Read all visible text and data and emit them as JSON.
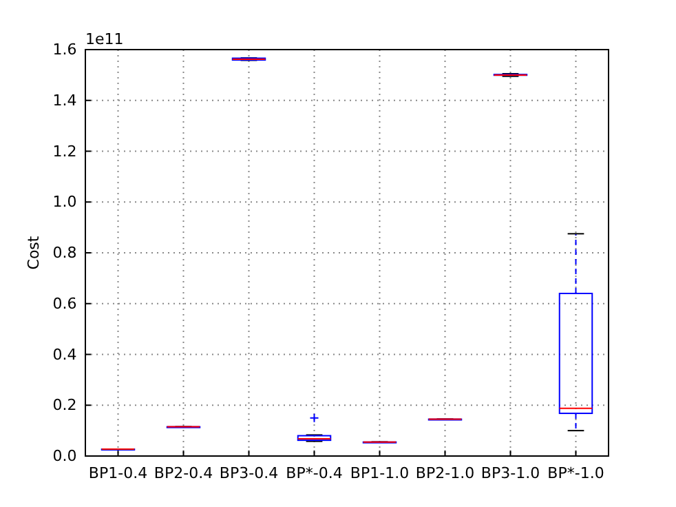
{
  "chart_data": {
    "type": "box",
    "ylabel": "Cost",
    "annotations": [
      "1e11"
    ],
    "categories": [
      "BP1-0.4",
      "BP2-0.4",
      "BP3-0.4",
      "BP*-0.4",
      "BP1-1.0",
      "BP2-1.0",
      "BP3-1.0",
      "BP*-1.0"
    ],
    "boxes": [
      {
        "low": 0.027,
        "q1": 0.027,
        "median": 0.027,
        "q3": 0.027,
        "high": 0.027
      },
      {
        "low": 0.115,
        "q1": 0.115,
        "median": 0.115,
        "q3": 0.115,
        "high": 0.115
      },
      {
        "low": 1.558,
        "q1": 1.559,
        "median": 1.562,
        "q3": 1.566,
        "high": 1.567
      },
      {
        "low": 0.058,
        "q1": 0.062,
        "median": 0.068,
        "q3": 0.08,
        "high": 0.083,
        "outliers": [
          0.15
        ]
      },
      {
        "low": 0.055,
        "q1": 0.055,
        "median": 0.055,
        "q3": 0.055,
        "high": 0.055
      },
      {
        "low": 0.145,
        "q1": 0.145,
        "median": 0.145,
        "q3": 0.145,
        "high": 0.145
      },
      {
        "low": 1.495,
        "q1": 1.499,
        "median": 1.5,
        "q3": 1.502,
        "high": 1.505
      },
      {
        "low": 0.1,
        "q1": 0.168,
        "median": 0.188,
        "q3": 0.64,
        "high": 0.875
      }
    ],
    "color": "#0000ff",
    "ylim": [
      0,
      1.6
    ],
    "yticks": [
      {
        "value": 0,
        "label": "0.0"
      },
      {
        "value": 0.2,
        "label": "0.2"
      },
      {
        "value": 0.4,
        "label": "0.4"
      },
      {
        "value": 0.6,
        "label": "0.6"
      },
      {
        "value": 0.8,
        "label": "0.8"
      },
      {
        "value": 1,
        "label": "1.0"
      },
      {
        "value": 1.2,
        "label": "1.2"
      },
      {
        "value": 1.4,
        "label": "1.4"
      },
      {
        "value": 1.6,
        "label": "1.6"
      }
    ],
    "grid": true,
    "marker": "cross"
  }
}
